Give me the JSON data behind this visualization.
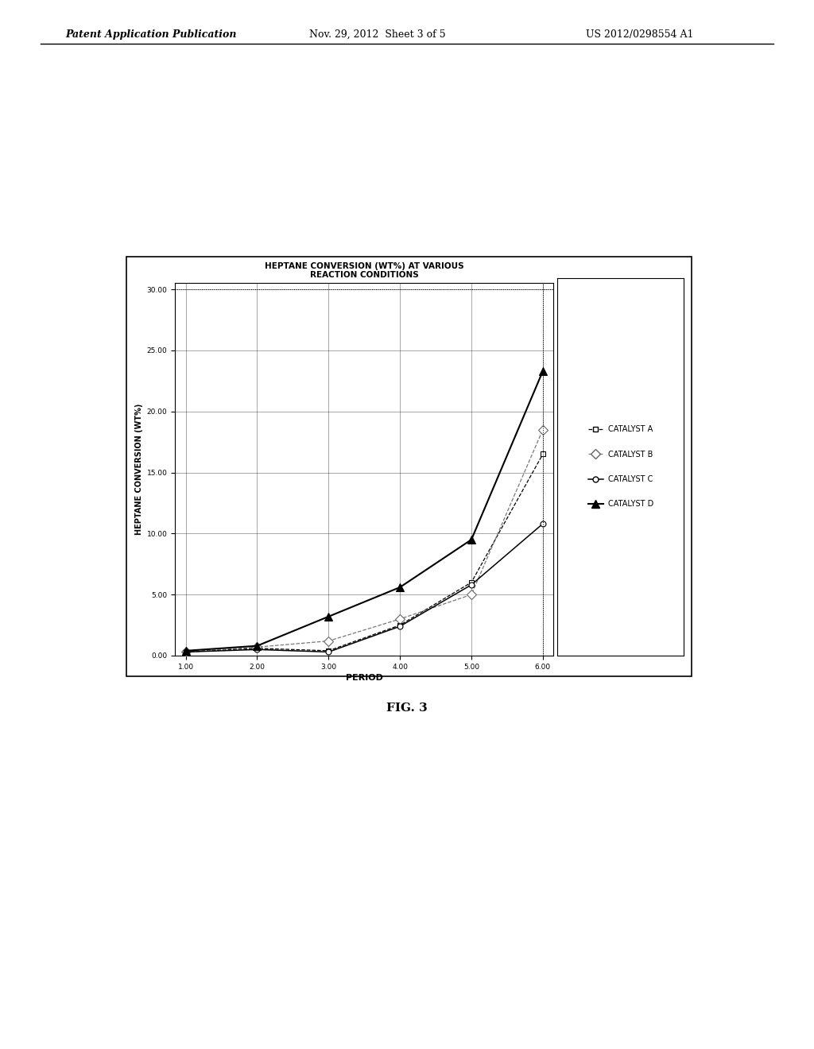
{
  "title_line1": "HEPTANE CONVERSION (WT%) AT VARIOUS",
  "title_line2": "REACTION CONDITIONS",
  "xlabel": "PERIOD",
  "ylabel": "HEPTANE CONVERSION (WT%)",
  "xticks": [
    1.0,
    2.0,
    3.0,
    4.0,
    5.0,
    6.0
  ],
  "yticks": [
    0.0,
    5.0,
    10.0,
    15.0,
    20.0,
    25.0,
    30.0
  ],
  "periods": [
    1.0,
    2.0,
    3.0,
    4.0,
    5.0,
    6.0
  ],
  "catalyst_A": {
    "label": "CATALYST A",
    "values": [
      0.3,
      0.6,
      0.4,
      2.5,
      6.0,
      16.5
    ]
  },
  "catalyst_B": {
    "label": "CATALYST B",
    "values": [
      0.3,
      0.7,
      1.2,
      3.0,
      5.0,
      18.5
    ]
  },
  "catalyst_C": {
    "label": "CATALYST C",
    "values": [
      0.3,
      0.5,
      0.3,
      2.4,
      5.8,
      10.8
    ]
  },
  "catalyst_D": {
    "label": "CATALYST D",
    "values": [
      0.4,
      0.8,
      3.2,
      5.6,
      9.5,
      23.3
    ]
  },
  "title_fontsize": 7.5,
  "axis_label_fontsize": 7,
  "tick_fontsize": 6.5,
  "legend_fontsize": 7,
  "header_text": "Patent Application Publication",
  "header_date": "Nov. 29, 2012  Sheet 3 of 5",
  "header_patent": "US 2012/0298554 A1",
  "fig_label": "FIG. 3"
}
